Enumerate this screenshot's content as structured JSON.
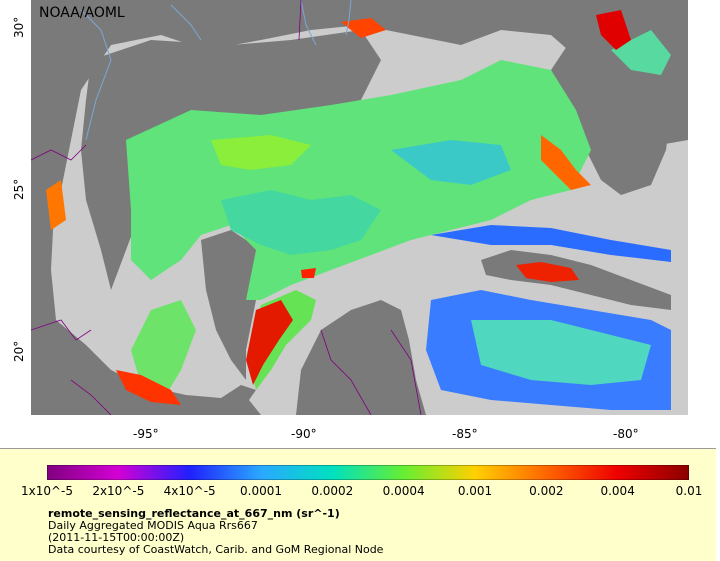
{
  "map": {
    "credit": "NOAA/AOML",
    "lat_ticks": [
      "30°",
      "25°",
      "20°"
    ],
    "lon_ticks": [
      "-95°",
      "-90°",
      "-85°",
      "-80°"
    ],
    "colors": {
      "land": "#7a7a7a",
      "nodata": "#cccccc",
      "river": "#7aa7d6",
      "border": "#800080"
    }
  },
  "legend": {
    "ticks": [
      "1x10^-5",
      "2x10^-5",
      "4x10^-5",
      "0.0001",
      "0.0002",
      "0.0004",
      "0.001",
      "0.002",
      "0.004",
      "0.01"
    ],
    "colors": [
      "#800080",
      "#d400d4",
      "#2020ff",
      "#2aa8ff",
      "#00e0c0",
      "#66ee33",
      "#ffd000",
      "#ff6600",
      "#ee0000",
      "#8b0000"
    ],
    "variable": "remote_sensing_reflectance_at_667_nm (sr^-1)",
    "line1": "Daily Aggregated MODIS Aqua Rrs667",
    "line2": "(2011-11-15T00:00:00Z)",
    "line3": "Data courtesy of CoastWatch, Carib. and GoM Regional Node"
  }
}
